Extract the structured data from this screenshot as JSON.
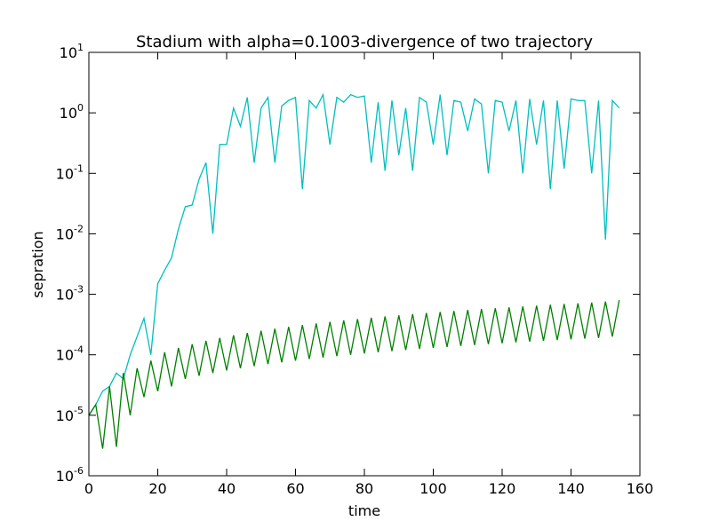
{
  "chart_data": {
    "type": "line",
    "title": "Stadium with alpha=0.1003-divergence of two trajectory",
    "xlabel": "time",
    "ylabel": "sepration",
    "log_y": true,
    "grid": false,
    "xlim": [
      0,
      160
    ],
    "xticks": [
      0,
      20,
      40,
      60,
      80,
      100,
      120,
      140,
      160
    ],
    "ylim": [
      1e-06,
      10
    ],
    "yticks": [
      {
        "value": 1e-06,
        "label": "10^-6"
      },
      {
        "value": 1e-05,
        "label": "10^-5"
      },
      {
        "value": 0.0001,
        "label": "10^-4"
      },
      {
        "value": 0.001,
        "label": "10^-3"
      },
      {
        "value": 0.01,
        "label": "10^-2"
      },
      {
        "value": 0.1,
        "label": "10^-1"
      },
      {
        "value": 1,
        "label": "10^0"
      },
      {
        "value": 10,
        "label": "10^1"
      }
    ],
    "x": [
      0,
      2,
      4,
      6,
      8,
      10,
      12,
      14,
      16,
      18,
      20,
      22,
      24,
      26,
      28,
      30,
      32,
      34,
      36,
      38,
      40,
      42,
      44,
      46,
      48,
      50,
      52,
      54,
      56,
      58,
      60,
      62,
      64,
      66,
      68,
      70,
      72,
      74,
      76,
      78,
      80,
      82,
      84,
      86,
      88,
      90,
      92,
      94,
      96,
      98,
      100,
      102,
      104,
      106,
      108,
      110,
      112,
      114,
      116,
      118,
      120,
      122,
      124,
      126,
      128,
      130,
      132,
      134,
      136,
      138,
      140,
      142,
      144,
      146,
      148,
      150,
      152,
      154
    ],
    "series": [
      {
        "color": "#00bfbf",
        "values": [
          1e-05,
          1.5e-05,
          2.5e-05,
          3e-05,
          5e-05,
          4e-05,
          0.0001,
          0.0002,
          0.0004,
          0.0001,
          0.0015,
          0.0025,
          0.004,
          0.012,
          0.028,
          0.03,
          0.08,
          0.15,
          0.01,
          0.3,
          0.3,
          1.2,
          0.6,
          1.8,
          0.15,
          1.2,
          1.8,
          0.15,
          1.3,
          1.6,
          1.8,
          0.055,
          1.6,
          1.2,
          2,
          0.3,
          1.8,
          1.5,
          2,
          1.8,
          1.9,
          0.15,
          1.5,
          0.11,
          1.6,
          0.2,
          1.2,
          0.11,
          1.8,
          1.5,
          0.3,
          2,
          0.2,
          1.6,
          1.5,
          0.5,
          1.7,
          1.4,
          0.1,
          1.6,
          1.5,
          0.5,
          1.6,
          0.1,
          1.7,
          0.3,
          1.6,
          0.055,
          1.6,
          0.12,
          1.7,
          1.6,
          1.6,
          0.1,
          1.6,
          0.008,
          1.6,
          1.2
        ]
      },
      {
        "color": "#008000",
        "values": [
          1e-05,
          1.5e-05,
          2.8e-06,
          3e-05,
          3e-06,
          5e-05,
          1e-05,
          6e-05,
          2e-05,
          8e-05,
          2.5e-05,
          0.00011,
          3e-05,
          0.00013,
          4e-05,
          0.00015,
          4.5e-05,
          0.00017,
          5e-05,
          0.00019,
          5.5e-05,
          0.00021,
          6e-05,
          0.00023,
          6.5e-05,
          0.00025,
          7e-05,
          0.00027,
          7.5e-05,
          0.00029,
          8e-05,
          0.00031,
          8.5e-05,
          0.00033,
          9e-05,
          0.00035,
          9.5e-05,
          0.00037,
          0.0001,
          0.00039,
          0.000105,
          0.00041,
          0.00011,
          0.00043,
          0.000115,
          0.00045,
          0.00012,
          0.00047,
          0.000125,
          0.00049,
          0.00013,
          0.00051,
          0.000135,
          0.00053,
          0.00014,
          0.00055,
          0.000145,
          0.00057,
          0.00015,
          0.00059,
          0.000155,
          0.00061,
          0.00016,
          0.00063,
          0.000165,
          0.00065,
          0.00017,
          0.00067,
          0.000175,
          0.00069,
          0.00018,
          0.00071,
          0.000185,
          0.00073,
          0.00019,
          0.00076,
          0.0002,
          0.0008
        ]
      }
    ]
  }
}
